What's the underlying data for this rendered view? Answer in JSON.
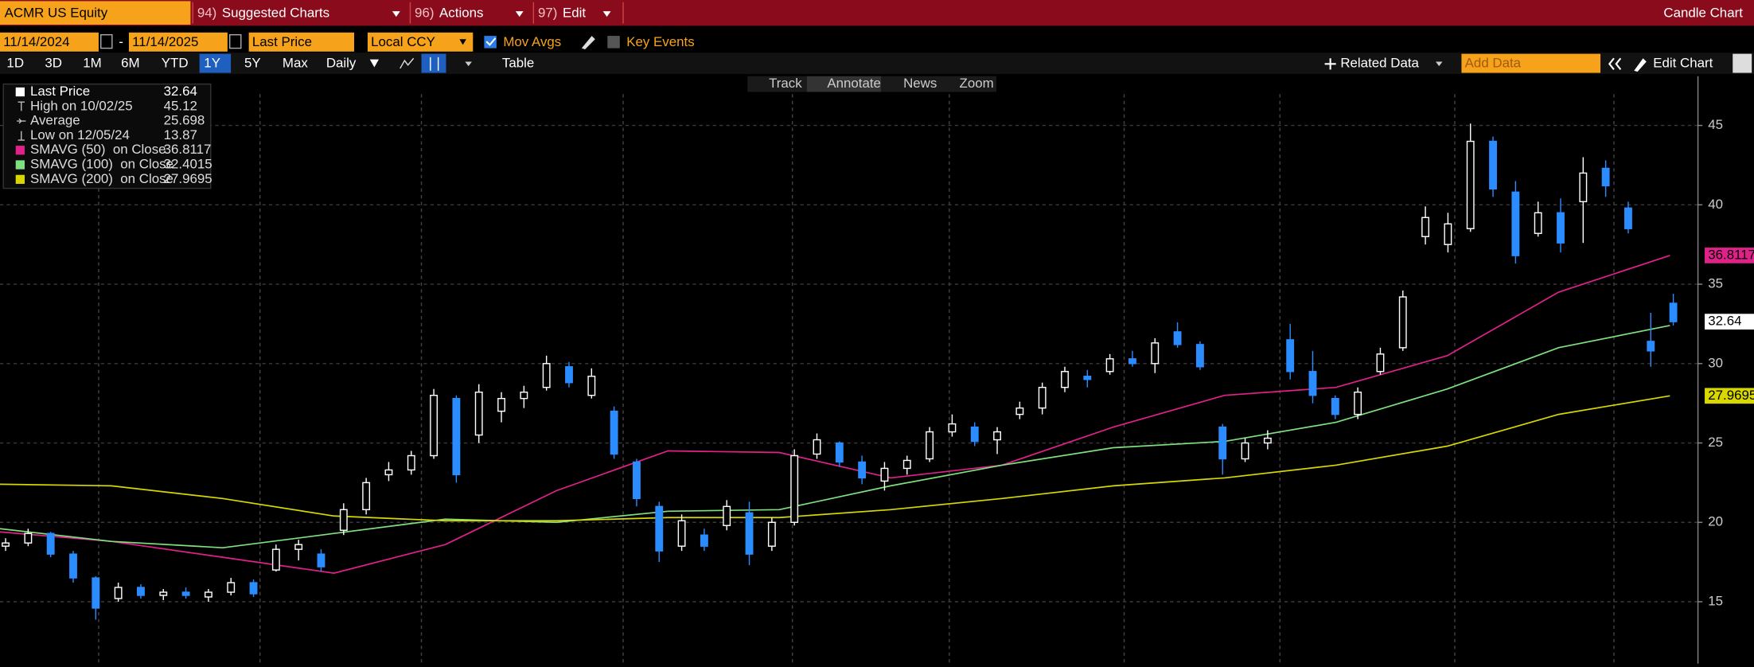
{
  "header": {
    "ticker": "ACMR US Equity",
    "menus": [
      {
        "code": "94)",
        "label": "Suggested Charts"
      },
      {
        "code": "96)",
        "label": "Actions"
      },
      {
        "code": "97)",
        "label": "Edit"
      }
    ],
    "title": "Candle Chart"
  },
  "controls": {
    "start_date": "11/14/2024",
    "separator": "-",
    "end_date": "11/14/2025",
    "field": "Last Price",
    "currency": "Local CCY",
    "mov_avgs": "Mov Avgs",
    "key_events": "Key Events"
  },
  "periods": [
    "1D",
    "3D",
    "1M",
    "6M",
    "YTD",
    "1Y",
    "5Y",
    "Max"
  ],
  "frequency": "Daily",
  "table": "Table",
  "related_data": "Related Data",
  "add_data": "Add Data",
  "edit_chart": "Edit Chart",
  "tools": [
    "Track",
    "Annotate",
    "News",
    "Zoom"
  ],
  "chart_data": {
    "type": "candlestick",
    "ylim": [
      11.1,
      48.1
    ],
    "yticks": [
      15,
      20,
      25,
      30,
      35,
      40,
      45
    ],
    "grid": true,
    "series": [
      {
        "name": "Last Price",
        "last_value": 32.64,
        "up_color": "#ffffff",
        "down_color": "#2a8cff",
        "open": [
          18.5,
          18.7,
          19.3,
          18.0,
          16.5,
          15.2,
          15.9,
          15.4,
          15.6,
          15.3,
          15.6,
          16.2,
          17.0,
          18.3,
          18.0,
          19.5,
          20.8,
          23.0,
          23.3,
          24.2,
          27.8,
          25.5,
          27.0,
          27.8,
          28.5,
          29.8,
          28.0,
          27.0,
          23.8,
          21.0,
          18.5,
          19.2,
          19.8,
          20.6,
          18.5,
          20.0,
          24.3,
          25.0,
          23.8,
          22.6,
          23.4,
          24.0,
          25.7,
          26.0,
          25.2,
          26.8,
          27.2,
          28.5,
          29.2,
          29.5,
          30.3,
          30.0,
          32.0,
          31.2,
          26.0,
          24.0,
          25.0,
          31.5,
          29.5,
          27.8,
          26.8,
          29.5,
          31.0,
          38.0,
          37.5,
          38.5,
          44.0,
          40.8,
          38.2,
          39.5,
          40.2,
          42.3,
          39.8,
          31.4,
          33.8
        ],
        "high": [
          19.0,
          19.6,
          19.4,
          18.2,
          16.6,
          16.2,
          16.1,
          15.8,
          15.9,
          15.8,
          16.5,
          16.4,
          18.6,
          18.9,
          18.3,
          21.2,
          22.8,
          23.8,
          24.5,
          28.4,
          28.0,
          28.7,
          28.2,
          28.6,
          30.5,
          30.1,
          29.7,
          27.3,
          24.0,
          21.3,
          20.5,
          19.6,
          21.4,
          21.3,
          20.3,
          24.6,
          25.6,
          25.1,
          24.2,
          23.8,
          24.2,
          26.0,
          26.8,
          26.3,
          26.0,
          27.6,
          28.8,
          29.8,
          29.6,
          30.6,
          30.8,
          31.6,
          32.6,
          31.4,
          26.2,
          25.3,
          25.8,
          32.5,
          30.8,
          28.0,
          28.5,
          31.0,
          34.6,
          39.9,
          39.5,
          45.12,
          44.3,
          41.5,
          40.2,
          40.4,
          43.0,
          42.8,
          40.2,
          33.2,
          34.4
        ],
        "low": [
          18.2,
          18.5,
          17.8,
          16.2,
          13.87,
          15.0,
          15.2,
          15.1,
          15.2,
          15.0,
          15.4,
          15.3,
          16.9,
          17.6,
          16.9,
          19.2,
          20.5,
          22.6,
          23.0,
          24.0,
          22.5,
          25.0,
          26.3,
          27.2,
          28.3,
          28.5,
          27.8,
          24.0,
          21.0,
          17.5,
          18.2,
          18.2,
          19.5,
          17.3,
          18.2,
          19.8,
          24.0,
          23.5,
          22.4,
          22.0,
          23.0,
          23.8,
          25.4,
          24.8,
          24.3,
          26.5,
          26.8,
          28.2,
          28.5,
          29.3,
          29.8,
          29.4,
          31.0,
          29.6,
          23.0,
          23.8,
          24.6,
          29.0,
          27.5,
          26.5,
          26.5,
          29.3,
          30.8,
          37.5,
          37.0,
          38.3,
          40.5,
          36.3,
          38.0,
          37.0,
          37.6,
          40.5,
          38.2,
          29.8,
          32.4
        ],
        "close": [
          18.7,
          19.3,
          18.0,
          16.5,
          14.6,
          15.9,
          15.4,
          15.6,
          15.4,
          15.6,
          16.2,
          15.5,
          18.3,
          18.6,
          17.2,
          20.8,
          22.5,
          23.3,
          24.2,
          28.0,
          23.0,
          28.2,
          27.8,
          28.2,
          30.0,
          28.8,
          29.2,
          24.3,
          21.5,
          18.2,
          20.1,
          18.5,
          21.0,
          18.0,
          20.0,
          24.2,
          25.2,
          23.8,
          22.8,
          23.4,
          23.9,
          25.7,
          26.2,
          25.1,
          25.7,
          27.2,
          28.5,
          29.5,
          29.0,
          30.3,
          30.0,
          31.3,
          31.2,
          29.8,
          24.0,
          25.0,
          25.3,
          29.5,
          28.0,
          26.8,
          28.2,
          30.6,
          34.2,
          39.2,
          38.8,
          44.0,
          41.0,
          36.8,
          39.5,
          37.6,
          42.0,
          41.2,
          38.5,
          30.8,
          32.64
        ]
      }
    ],
    "stats": [
      {
        "label": "High on 10/02/25",
        "value": 45.12
      },
      {
        "label": "Average",
        "value": 25.698
      },
      {
        "label": "Low on 12/05/24",
        "value": 13.87
      }
    ],
    "moving_averages": [
      {
        "name": "SMAVG (50)  on Close",
        "color": "#e0218a",
        "last": 36.8117,
        "values": [
          19.4,
          18.8,
          17.8,
          16.8,
          18.6,
          22.0,
          24.5,
          24.4,
          22.8,
          23.6,
          26.0,
          28.0,
          28.5,
          30.5,
          34.5,
          36.8117
        ]
      },
      {
        "name": "SMAVG (100)  on Close",
        "color": "#7fe07f",
        "last": 32.4015,
        "values": [
          19.6,
          18.8,
          18.4,
          19.3,
          20.2,
          20.0,
          20.7,
          20.8,
          22.3,
          23.6,
          24.7,
          25.1,
          26.3,
          28.4,
          31.0,
          32.4015
        ]
      },
      {
        "name": "SMAVG (200)  on Close",
        "color": "#d8d800",
        "last": 27.9695,
        "values": [
          22.4,
          22.3,
          21.5,
          20.4,
          20.1,
          20.1,
          20.3,
          20.3,
          20.8,
          21.5,
          22.3,
          22.8,
          23.6,
          24.8,
          26.8,
          27.9695
        ]
      }
    ]
  }
}
